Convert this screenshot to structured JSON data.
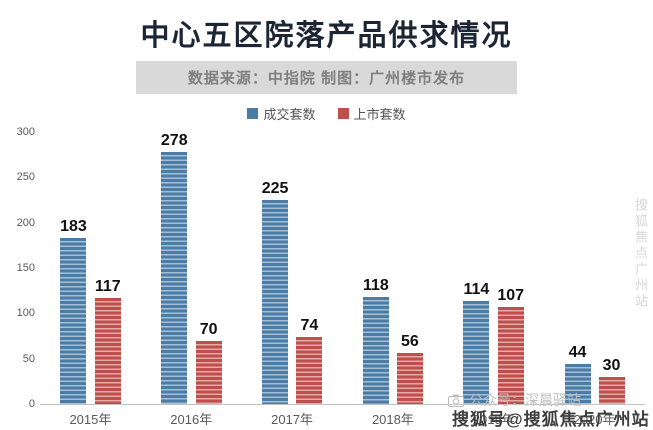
{
  "title": "中心五区院落产品供求情况",
  "subtitle": "数据来源：中指院  制图：广州楼市发布",
  "legend": [
    {
      "label": "成交套数",
      "color": "#4a7ca6"
    },
    {
      "label": "上市套数",
      "color": "#bf4f4c"
    }
  ],
  "watermarks": {
    "center": "公众号：深晨驿站",
    "bottom_right": "搜狐号@搜狐焦点广州站",
    "right_vertical": "搜狐焦点广州站"
  },
  "chart_data": {
    "type": "bar",
    "categories": [
      "2015年",
      "2016年",
      "2017年",
      "2018年",
      "2019年",
      "2020年"
    ],
    "series": [
      {
        "name": "成交套数",
        "color": "#4a7ca6",
        "values": [
          183,
          278,
          225,
          118,
          114,
          44
        ]
      },
      {
        "name": "上市套数",
        "color": "#bf4f4c",
        "values": [
          117,
          70,
          74,
          56,
          107,
          30
        ]
      }
    ],
    "title": "中心五区院落产品供求情况",
    "xlabel": "",
    "ylabel": "",
    "ylim": [
      0,
      300
    ],
    "yticks": [
      0,
      50,
      100,
      150,
      200,
      250,
      300
    ],
    "grid": false,
    "legend_position": "top",
    "value_labels": true
  }
}
